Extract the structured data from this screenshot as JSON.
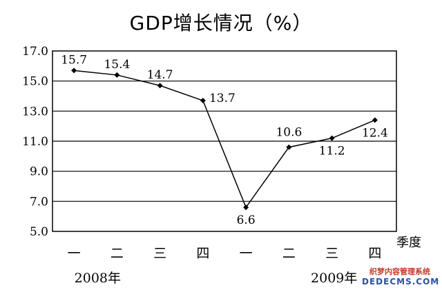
{
  "chart_data": {
    "type": "line",
    "title": "GDP增长情况（%）",
    "xlabel": "季度",
    "ylabel": "",
    "categories": [
      "一",
      "二",
      "三",
      "四",
      "一",
      "二",
      "三",
      "四"
    ],
    "groups": [
      "2008年",
      "2009年"
    ],
    "values": [
      15.7,
      15.4,
      14.7,
      13.7,
      6.6,
      10.6,
      11.2,
      12.4
    ],
    "value_labels": [
      "15.7",
      "15.4",
      "14.7",
      "13.7",
      "6.6",
      "10.6",
      "11.2",
      "12.4"
    ],
    "ylim": [
      5.0,
      17.0
    ],
    "yticks": [
      "17.0",
      "15.0",
      "13.0",
      "11.0",
      "9.0",
      "7.0",
      "5.0"
    ],
    "grid": true,
    "marker": "diamond",
    "line_color": "#000000"
  },
  "watermark": {
    "line1": "织梦内容管理系统",
    "line2": "DEDECMS.COM"
  }
}
